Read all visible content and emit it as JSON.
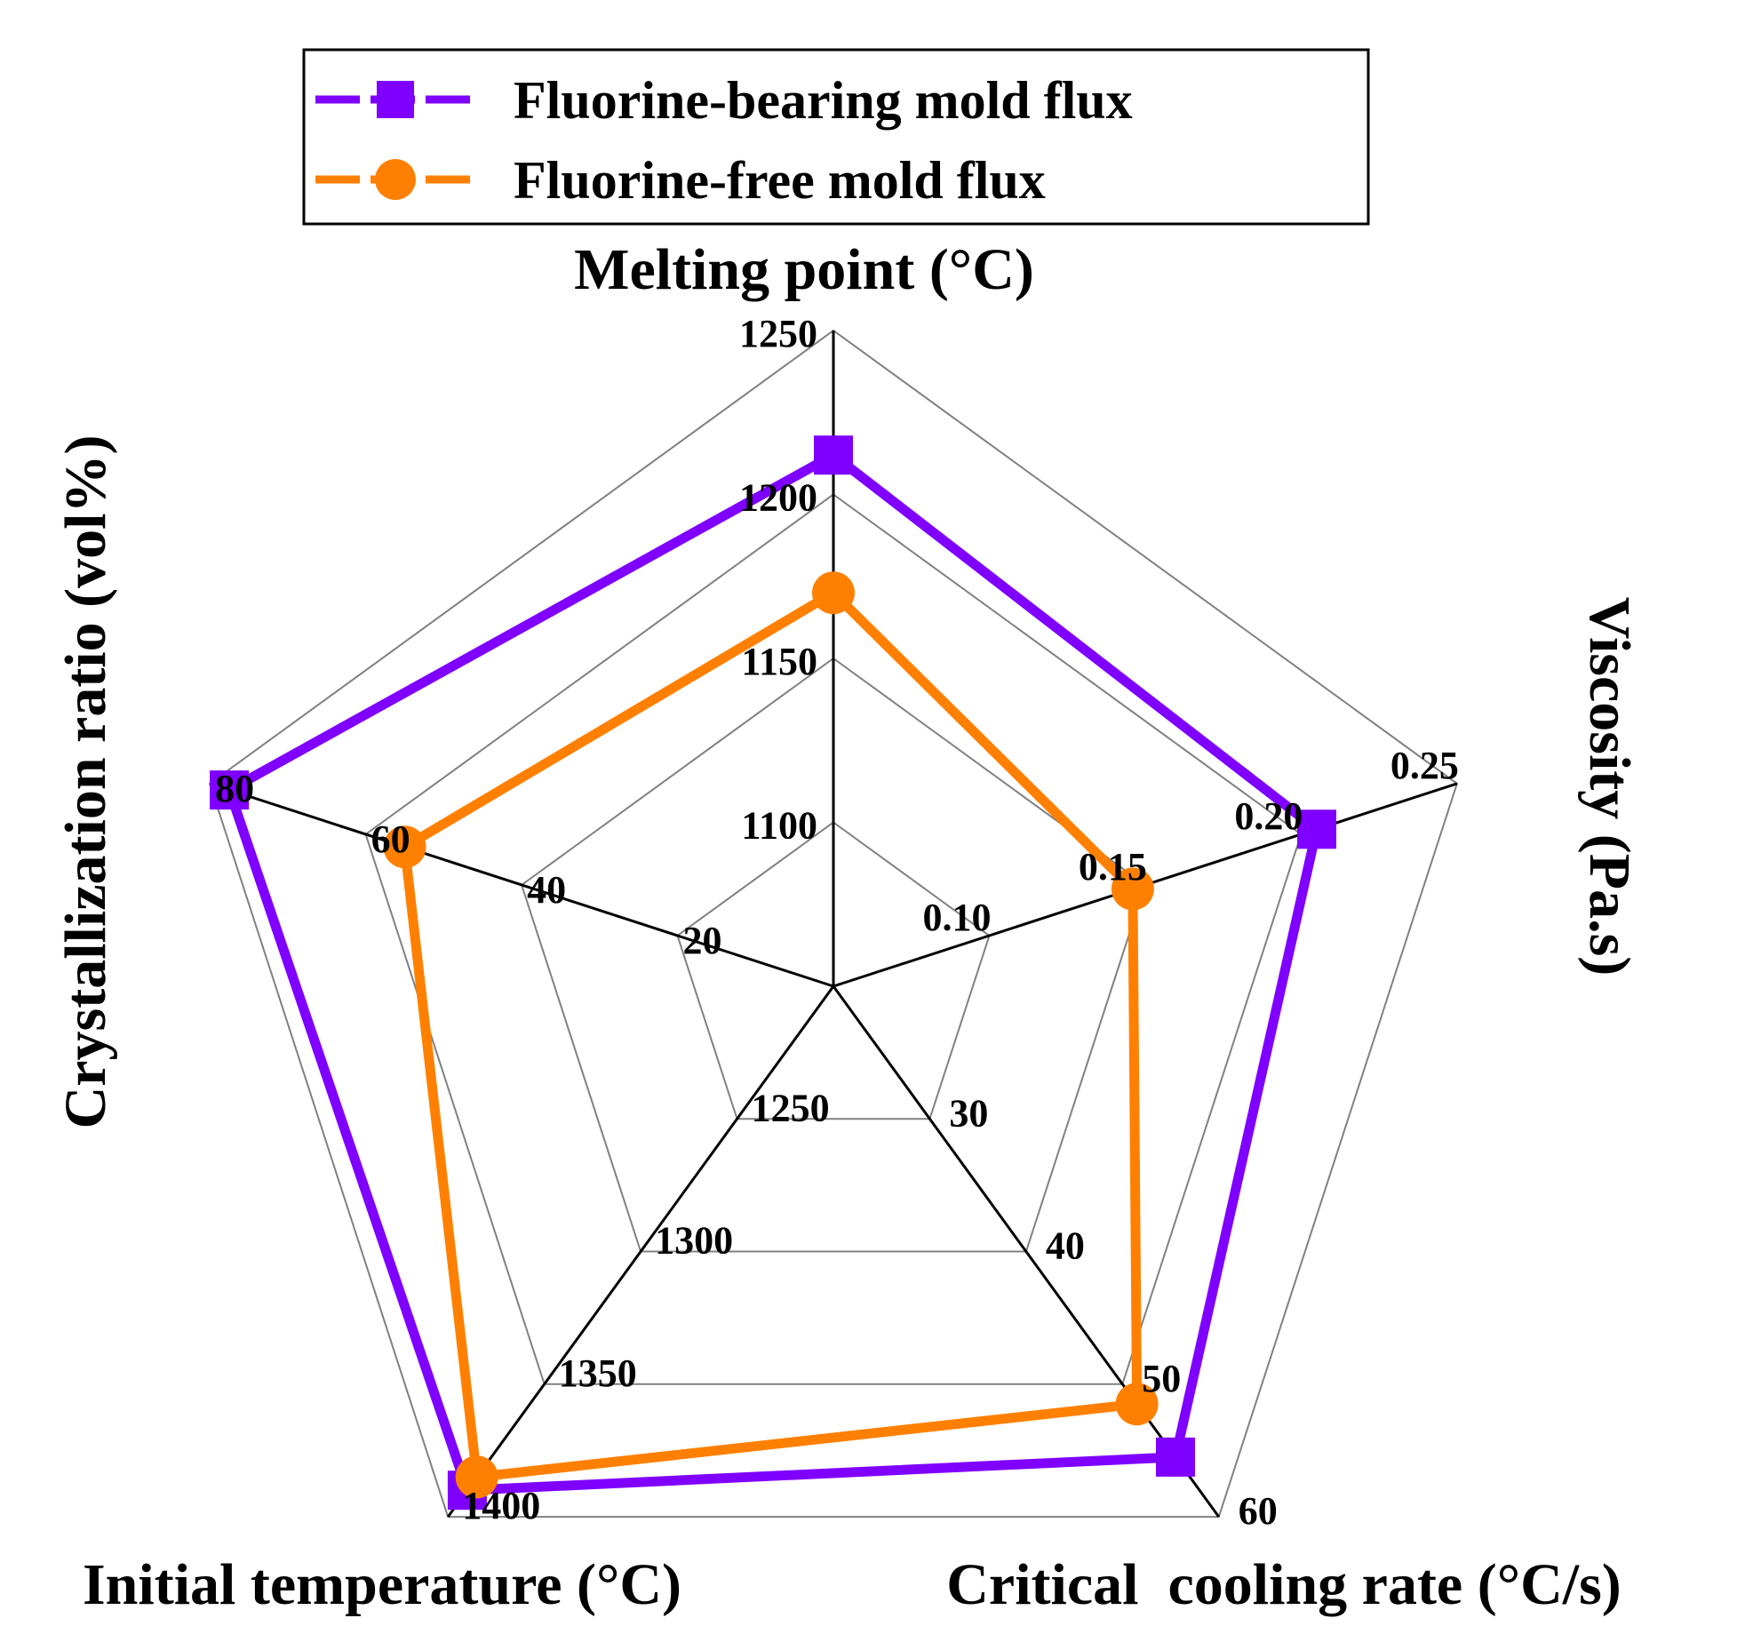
{
  "chart_data": {
    "type": "radar",
    "title": "",
    "grid": true,
    "legend_position": "top",
    "colors": {
      "fluorine_bearing": "#7F00FF",
      "fluorine_free": "#FF8000",
      "axis": "#000000",
      "grid": "#808080"
    },
    "axes": [
      {
        "name": "Melting point (°C)",
        "min": 1050,
        "max": 1250,
        "ticks": [
          1100,
          1150,
          1200,
          1250
        ],
        "tick_labels": [
          "1100",
          "1150",
          "1200",
          "1250"
        ]
      },
      {
        "name": "Viscosity (Pa.s)",
        "min": 0.05,
        "max": 0.25,
        "ticks": [
          0.1,
          0.15,
          0.2,
          0.25
        ],
        "tick_labels": [
          "0.10",
          "0.15",
          "0.20",
          "0.25"
        ]
      },
      {
        "name": "Critical  cooling rate (°C/s)",
        "min": 20,
        "max": 60,
        "ticks": [
          30,
          40,
          50,
          60
        ],
        "tick_labels": [
          "30",
          "40",
          "50",
          "60"
        ]
      },
      {
        "name": "Initial temperature (°C)",
        "min": 1200,
        "max": 1400,
        "ticks": [
          1250,
          1300,
          1350,
          1400
        ],
        "tick_labels": [
          "1250",
          "1300",
          "1350",
          "1400"
        ]
      },
      {
        "name": "Crystallization ratio (vol%)",
        "min": 0,
        "max": 80,
        "ticks": [
          20,
          40,
          60,
          80
        ],
        "tick_labels": [
          "20",
          "40",
          "60",
          "80"
        ]
      }
    ],
    "series": [
      {
        "name": "Fluorine-bearing mold flux",
        "marker": "square",
        "values": [
          1212,
          0.205,
          55.5,
          1390,
          77.5
        ]
      },
      {
        "name": "Fluorine-free mold flux",
        "marker": "circle",
        "values": [
          1170,
          0.146,
          51.5,
          1385,
          55
        ]
      }
    ]
  }
}
